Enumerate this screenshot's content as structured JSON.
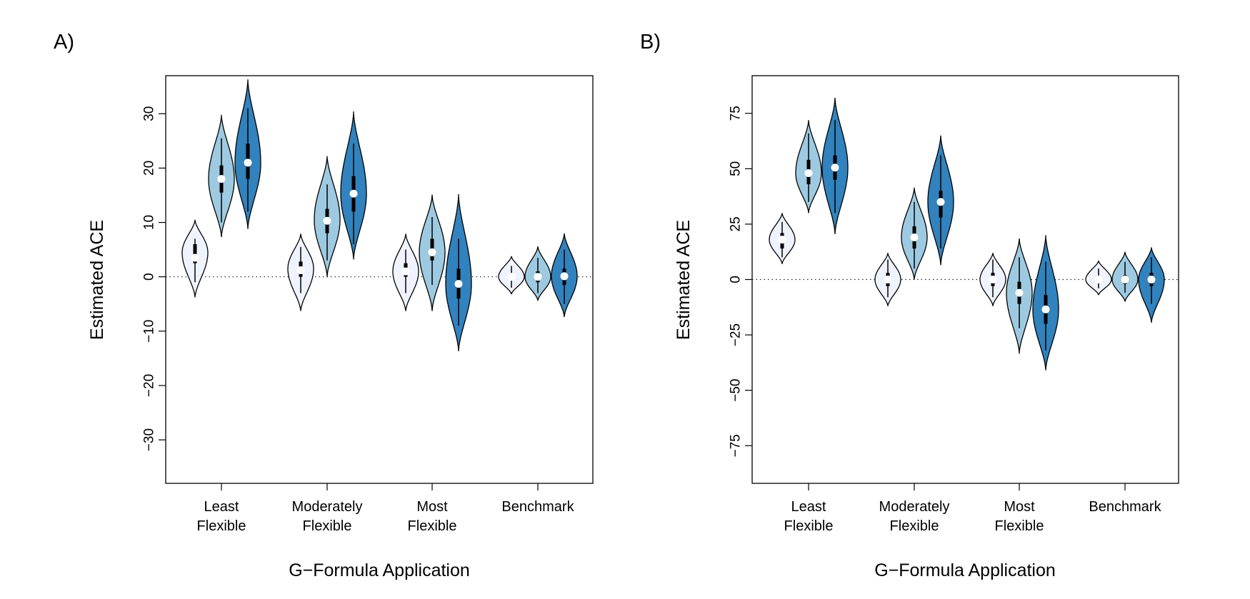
{
  "chart_data": [
    {
      "panel_label": "A)",
      "type": "violin",
      "xlabel": "G−Formula Application",
      "ylabel": "Estimated ACE",
      "ylim": [
        -38,
        37
      ],
      "yticks": [
        -30,
        -20,
        -10,
        0,
        10,
        20,
        30
      ],
      "ytick_labels": [
        "−30",
        "−20",
        "−10",
        "0",
        "10",
        "20",
        "30"
      ],
      "categories": [
        [
          "Least",
          "Flexible"
        ],
        [
          "Moderately",
          "Flexible"
        ],
        [
          "Most",
          "Flexible"
        ],
        [
          "Benchmark"
        ]
      ],
      "reference_line": 0,
      "series_colors": [
        "#eff3ff",
        "#9ecae1",
        "#3182bd"
      ],
      "groups": [
        [
          {
            "median": 3.5,
            "q1": 2.5,
            "q3": 6,
            "whisker_low": -1,
            "whisker_high": 7,
            "min": -3.8,
            "max": 10.5,
            "mode": 4.5,
            "width": 0.8
          },
          {
            "median": 18,
            "q1": 15.5,
            "q3": 20.5,
            "whisker_low": 10,
            "whisker_high": 25.5,
            "min": 7.3,
            "max": 29.8,
            "mode": 18,
            "width": 0.8
          },
          {
            "median": 21,
            "q1": 18,
            "q3": 24.5,
            "whisker_low": 12,
            "whisker_high": 31,
            "min": 8.8,
            "max": 36.3,
            "mode": 21,
            "width": 0.8
          }
        ],
        [
          {
            "median": 1.2,
            "q1": 0,
            "q3": 2.8,
            "whisker_low": -3,
            "whisker_high": 5.5,
            "min": -6.3,
            "max": 7.9,
            "mode": 1.5,
            "width": 0.8
          },
          {
            "median": 10.3,
            "q1": 8,
            "q3": 12.5,
            "whisker_low": 3,
            "whisker_high": 17,
            "min": 0,
            "max": 22.2,
            "mode": 10.5,
            "width": 0.8
          },
          {
            "median": 15.3,
            "q1": 12,
            "q3": 18.5,
            "whisker_low": 6,
            "whisker_high": 24.5,
            "min": 3.2,
            "max": 30.4,
            "mode": 15.3,
            "width": 0.8
          }
        ],
        [
          {
            "median": 1,
            "q1": 0,
            "q3": 2.5,
            "whisker_low": -3,
            "whisker_high": 5,
            "min": -6.3,
            "max": 7.9,
            "mode": 1,
            "width": 0.8
          },
          {
            "median": 4.5,
            "q1": 3,
            "q3": 7,
            "whisker_low": -1.5,
            "whisker_high": 11,
            "min": -6.3,
            "max": 15.1,
            "mode": 4.5,
            "width": 0.8
          },
          {
            "median": -1.3,
            "q1": -4,
            "q3": 1.5,
            "whisker_low": -9,
            "whisker_high": 7,
            "min": -13.7,
            "max": 15.2,
            "mode": -1.3,
            "width": 0.8
          }
        ],
        [
          {
            "median": 0,
            "q1": -0.5,
            "q3": 0.5,
            "whisker_low": -2,
            "whisker_high": 2,
            "min": -3.2,
            "max": 3.8,
            "mode": 0,
            "width": 0.8
          },
          {
            "median": 0,
            "q1": -1,
            "q3": 1,
            "whisker_low": -3,
            "whisker_high": 3.5,
            "min": -4.4,
            "max": 5.6,
            "mode": 0,
            "width": 0.8
          },
          {
            "median": 0.1,
            "q1": -1.5,
            "q3": 1.5,
            "whisker_low": -5,
            "whisker_high": 5,
            "min": -7.4,
            "max": 8,
            "mode": 0.1,
            "width": 0.8
          }
        ]
      ]
    },
    {
      "panel_label": "B)",
      "type": "violin",
      "xlabel": "G−Formula Application",
      "ylabel": "Estimated ACE",
      "ylim": [
        -92,
        92
      ],
      "yticks": [
        -75,
        -50,
        -25,
        0,
        25,
        50,
        75
      ],
      "ytick_labels": [
        "−75",
        "−50",
        "−25",
        "0",
        "25",
        "50",
        "75"
      ],
      "categories": [
        [
          "Least",
          "Flexible"
        ],
        [
          "Moderately",
          "Flexible"
        ],
        [
          "Most",
          "Flexible"
        ],
        [
          "Benchmark"
        ]
      ],
      "reference_line": 0,
      "series_colors": [
        "#eff3ff",
        "#9ecae1",
        "#3182bd"
      ],
      "groups": [
        [
          {
            "median": 18,
            "q1": 14,
            "q3": 21,
            "whisker_low": 10,
            "whisker_high": 26,
            "min": 7,
            "max": 30,
            "mode": 18,
            "width": 0.8
          },
          {
            "median": 48,
            "q1": 43,
            "q3": 54,
            "whisker_low": 35,
            "whisker_high": 66,
            "min": 30,
            "max": 72,
            "mode": 48,
            "width": 0.8
          },
          {
            "median": 50.5,
            "q1": 45,
            "q3": 56,
            "whisker_low": 30,
            "whisker_high": 72,
            "min": 20.5,
            "max": 82,
            "mode": 50.5,
            "width": 0.8
          }
        ],
        [
          {
            "median": 0,
            "q1": -3,
            "q3": 3,
            "whisker_low": -8,
            "whisker_high": 9,
            "min": -12,
            "max": 12,
            "mode": 0,
            "width": 0.8
          },
          {
            "median": 19,
            "q1": 14,
            "q3": 24,
            "whisker_low": 5,
            "whisker_high": 35,
            "min": 0,
            "max": 41.5,
            "mode": 19,
            "width": 0.8
          },
          {
            "median": 35,
            "q1": 28,
            "q3": 40,
            "whisker_low": 14,
            "whisker_high": 56,
            "min": 6.5,
            "max": 65,
            "mode": 35,
            "width": 0.8
          }
        ],
        [
          {
            "median": 0,
            "q1": -3,
            "q3": 3,
            "whisker_low": -8,
            "whisker_high": 9,
            "min": -12,
            "max": 12,
            "mode": 0,
            "width": 0.8
          },
          {
            "median": -6,
            "q1": -11,
            "q3": -1,
            "whisker_low": -22,
            "whisker_high": 10,
            "min": -33.5,
            "max": 18.5,
            "mode": -6,
            "width": 0.8
          },
          {
            "median": -13.5,
            "q1": -20,
            "q3": -7,
            "whisker_low": -32,
            "whisker_high": 8,
            "min": -41,
            "max": 20,
            "mode": -13.5,
            "width": 0.8
          }
        ],
        [
          {
            "median": 0,
            "q1": -1,
            "q3": 1,
            "whisker_low": -4,
            "whisker_high": 5,
            "min": -7,
            "max": 8.5,
            "mode": 0,
            "width": 0.8
          },
          {
            "median": 0,
            "q1": -2,
            "q3": 2,
            "whisker_low": -6,
            "whisker_high": 8,
            "min": -10,
            "max": 12.5,
            "mode": 0,
            "width": 0.8
          },
          {
            "median": 0,
            "q1": -3,
            "q3": 3,
            "whisker_low": -11,
            "whisker_high": 10,
            "min": -19.5,
            "max": 14.5,
            "mode": 0,
            "width": 0.8
          }
        ]
      ]
    }
  ]
}
